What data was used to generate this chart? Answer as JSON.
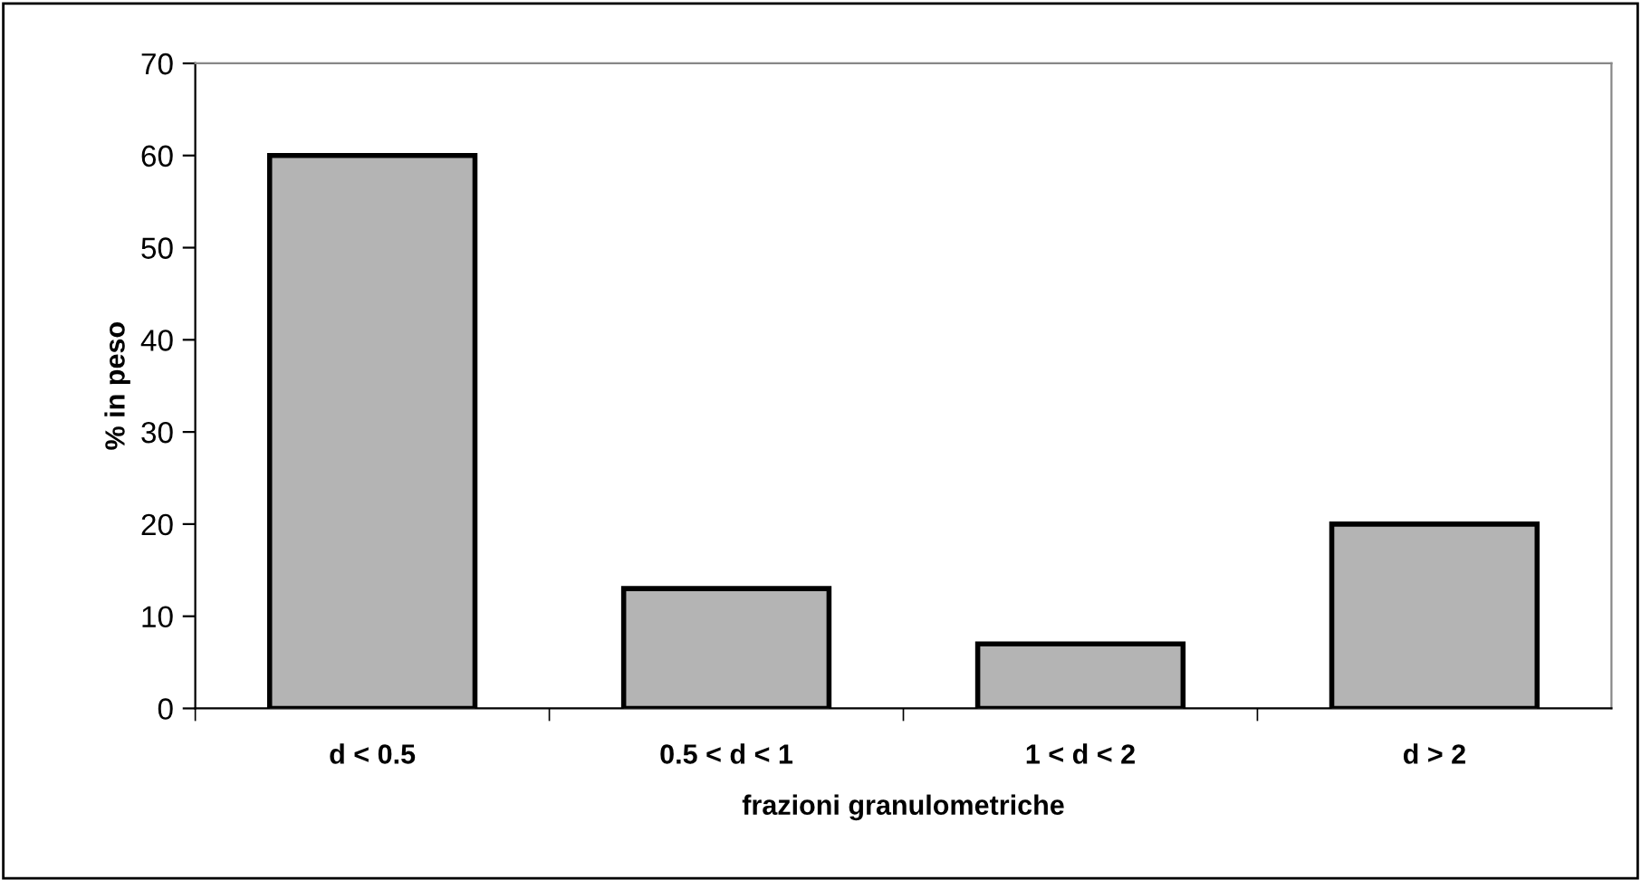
{
  "chart_data": {
    "type": "bar",
    "xlabel": "frazioni granulometriche",
    "ylabel": "% in peso",
    "categories": [
      "d < 0.5",
      "0.5 < d < 1",
      "1 < d < 2",
      "d > 2"
    ],
    "values": [
      60,
      13,
      7,
      20
    ],
    "color": "#b4b4b4",
    "ylim": [
      0,
      70
    ],
    "yticks": [
      0,
      10,
      20,
      30,
      40,
      50,
      60,
      70
    ],
    "grid": false,
    "legend": false
  }
}
